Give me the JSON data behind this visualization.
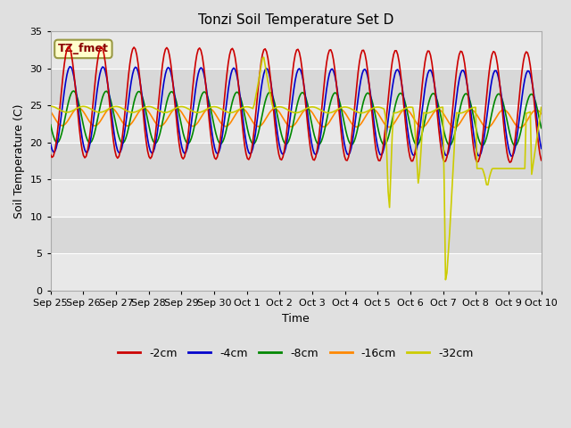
{
  "title": "Tonzi Soil Temperature Set D",
  "xlabel": "Time",
  "ylabel": "Soil Temperature (C)",
  "ylim": [
    0,
    35
  ],
  "legend_label": "TZ_fmet",
  "series_labels": [
    "-2cm",
    "-4cm",
    "-8cm",
    "-16cm",
    "-32cm"
  ],
  "series_colors": [
    "#cc0000",
    "#0000cc",
    "#008800",
    "#ff8800",
    "#cccc00"
  ],
  "xtick_labels": [
    "Sep 25",
    "Sep 26",
    "Sep 27",
    "Sep 28",
    "Sep 29",
    "Sep 30",
    "Oct 1",
    "Oct 2",
    "Oct 3",
    "Oct 4",
    "Oct 5",
    "Oct 6",
    "Oct 7",
    "Oct 8",
    "Oct 9",
    "Oct 10"
  ],
  "band_colors": [
    "#e8e8e8",
    "#d8d8d8"
  ],
  "fig_bg": "#e0e0e0",
  "grid_line_color": "#ffffff"
}
